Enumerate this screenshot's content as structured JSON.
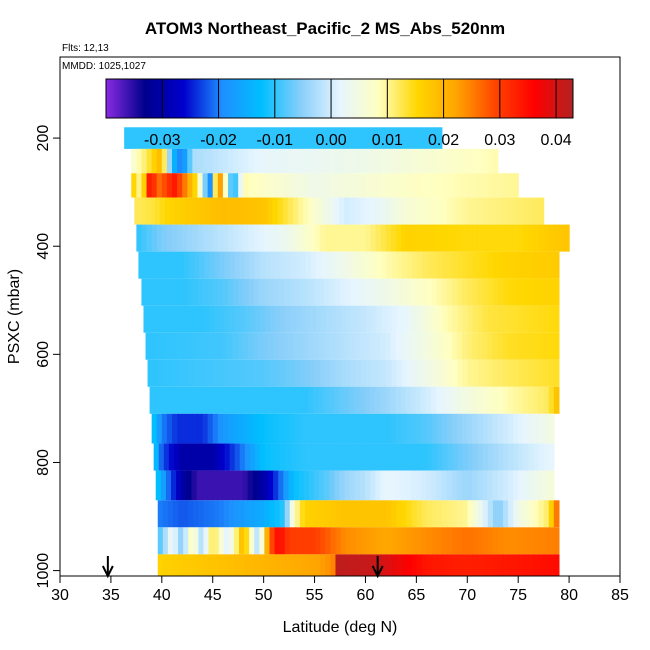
{
  "chart_data": {
    "type": "heatmap",
    "title": "ATOM3 Northeast_Pacific_2 MS_Abs_520nm",
    "notes": [
      "Flts: 12,13",
      "MMDD: 1025,1027"
    ],
    "xlabel": "Latitude (deg N)",
    "ylabel": "PSXC (mbar)",
    "xlim": [
      30,
      85
    ],
    "ylim": [
      1010,
      50
    ],
    "x_ticks": [
      30,
      35,
      40,
      45,
      50,
      55,
      60,
      65,
      70,
      75,
      80,
      85
    ],
    "y_ticks": [
      200,
      400,
      600,
      800,
      1000
    ],
    "colorbar": {
      "range": [
        -0.04,
        0.043
      ],
      "ticks": [
        -0.03,
        -0.02,
        -0.01,
        0.0,
        0.01,
        0.02,
        0.03,
        0.04
      ],
      "tick_labels": [
        "-0.03",
        "-0.02",
        "-0.01",
        "0.00",
        "0.01",
        "0.02",
        "0.03",
        "0.04"
      ],
      "colors": [
        "#8a2be2",
        "#00008b",
        "#0000cd",
        "#1e90ff",
        "#00bfff",
        "#87cefa",
        "#e6f5ff",
        "#ffffc0",
        "#ffd700",
        "#ffa500",
        "#ff4500",
        "#ff0000",
        "#b22222"
      ]
    },
    "markers": [
      {
        "latitude": 34.7,
        "label": "arrow"
      },
      {
        "latitude": 61.2,
        "label": "arrow"
      }
    ],
    "rows": [
      {
        "p_top": 180,
        "p_bot": 220,
        "lat_start": 36.3,
        "lat_end": 67.5,
        "stops": [
          [
            36.3,
            -0.01
          ],
          [
            67.5,
            -0.01
          ]
        ]
      },
      {
        "p_top": 220,
        "p_bot": 265,
        "lat_start": 37.0,
        "lat_end": 73.0,
        "stops": [
          [
            37.0,
            0.006
          ],
          [
            38.5,
            0.012
          ],
          [
            40.0,
            0.02
          ],
          [
            41.0,
            -0.012
          ],
          [
            42.0,
            -0.022
          ],
          [
            43.0,
            -0.003
          ],
          [
            50.0,
            0.002
          ],
          [
            60.0,
            0.004
          ],
          [
            73.0,
            0.009
          ]
        ]
      },
      {
        "p_top": 265,
        "p_bot": 310,
        "lat_start": 37.0,
        "lat_end": 75.0,
        "stops": [
          [
            37.0,
            0.018
          ],
          [
            38.0,
            0.008
          ],
          [
            38.8,
            0.035
          ],
          [
            39.8,
            0.026
          ],
          [
            41.2,
            0.034
          ],
          [
            42.2,
            0.026
          ],
          [
            43.5,
            0.013
          ],
          [
            44.8,
            -0.02
          ],
          [
            45.5,
            0.03
          ],
          [
            47.0,
            -0.015
          ],
          [
            48.0,
            0.009
          ],
          [
            55.0,
            0.004
          ],
          [
            65.0,
            0.008
          ],
          [
            75.0,
            0.01
          ]
        ]
      },
      {
        "p_top": 310,
        "p_bot": 360,
        "lat_start": 37.3,
        "lat_end": 77.5,
        "stops": [
          [
            37.3,
            0.012
          ],
          [
            39.0,
            0.013
          ],
          [
            41.0,
            0.016
          ],
          [
            46.0,
            0.019
          ],
          [
            50.0,
            0.018
          ],
          [
            55.0,
            0.007
          ],
          [
            58.0,
            0.0
          ],
          [
            61.0,
            0.002
          ],
          [
            64.0,
            0.006
          ],
          [
            70.0,
            0.01
          ],
          [
            77.5,
            0.012
          ]
        ]
      },
      {
        "p_top": 360,
        "p_bot": 410,
        "lat_start": 37.5,
        "lat_end": 80.0,
        "stops": [
          [
            37.5,
            -0.01
          ],
          [
            40.0,
            -0.006
          ],
          [
            44.0,
            -0.003
          ],
          [
            48.0,
            0.0
          ],
          [
            52.0,
            0.003
          ],
          [
            56.0,
            0.01
          ],
          [
            60.0,
            0.01
          ],
          [
            64.0,
            0.016
          ],
          [
            70.0,
            0.015
          ],
          [
            75.0,
            0.015
          ],
          [
            80.0,
            0.018
          ]
        ]
      },
      {
        "p_top": 410,
        "p_bot": 460,
        "lat_start": 37.7,
        "lat_end": 79.0,
        "stops": [
          [
            37.7,
            -0.01
          ],
          [
            42.0,
            -0.01
          ],
          [
            46.0,
            -0.006
          ],
          [
            50.0,
            -0.002
          ],
          [
            54.0,
            0.0
          ],
          [
            58.0,
            0.004
          ],
          [
            62.0,
            0.009
          ],
          [
            66.0,
            0.012
          ],
          [
            70.0,
            0.014
          ],
          [
            74.0,
            0.016
          ],
          [
            79.0,
            0.017
          ]
        ]
      },
      {
        "p_top": 460,
        "p_bot": 510,
        "lat_start": 38.0,
        "lat_end": 79.0,
        "stops": [
          [
            38.0,
            -0.01
          ],
          [
            42.0,
            -0.01
          ],
          [
            46.0,
            -0.008
          ],
          [
            50.0,
            -0.004
          ],
          [
            54.0,
            -0.002
          ],
          [
            58.0,
            0.001
          ],
          [
            62.0,
            0.004
          ],
          [
            66.0,
            0.008
          ],
          [
            70.0,
            0.012
          ],
          [
            74.0,
            0.015
          ],
          [
            79.0,
            0.016
          ]
        ]
      },
      {
        "p_top": 510,
        "p_bot": 560,
        "lat_start": 38.2,
        "lat_end": 79.0,
        "stops": [
          [
            38.2,
            -0.01
          ],
          [
            44.0,
            -0.01
          ],
          [
            48.0,
            -0.008
          ],
          [
            52.0,
            -0.005
          ],
          [
            56.0,
            -0.003
          ],
          [
            60.0,
            -0.001
          ],
          [
            64.0,
            0.002
          ],
          [
            68.0,
            0.009
          ],
          [
            72.0,
            0.013
          ],
          [
            79.0,
            0.015
          ]
        ]
      },
      {
        "p_top": 560,
        "p_bot": 610,
        "lat_start": 38.4,
        "lat_end": 79.0,
        "stops": [
          [
            38.4,
            -0.01
          ],
          [
            46.0,
            -0.009
          ],
          [
            50.0,
            -0.006
          ],
          [
            54.0,
            -0.004
          ],
          [
            58.0,
            -0.002
          ],
          [
            62.0,
            0.0
          ],
          [
            66.0,
            0.005
          ],
          [
            70.0,
            0.011
          ],
          [
            74.0,
            0.014
          ],
          [
            79.0,
            0.015
          ]
        ]
      },
      {
        "p_top": 610,
        "p_bot": 660,
        "lat_start": 38.6,
        "lat_end": 79.0,
        "stops": [
          [
            38.6,
            -0.01
          ],
          [
            50.0,
            -0.008
          ],
          [
            54.0,
            -0.006
          ],
          [
            58.0,
            -0.003
          ],
          [
            62.0,
            -0.001
          ],
          [
            66.0,
            0.004
          ],
          [
            70.0,
            0.01
          ],
          [
            74.0,
            0.012
          ],
          [
            79.0,
            0.014
          ]
        ]
      },
      {
        "p_top": 660,
        "p_bot": 710,
        "lat_start": 38.8,
        "lat_end": 79.0,
        "stops": [
          [
            38.8,
            -0.01
          ],
          [
            54.0,
            -0.01
          ],
          [
            58.0,
            -0.007
          ],
          [
            62.0,
            -0.004
          ],
          [
            66.0,
            0.0
          ],
          [
            70.0,
            0.005
          ],
          [
            74.0,
            0.009
          ],
          [
            78.0,
            0.012
          ],
          [
            79.0,
            0.02
          ]
        ]
      },
      {
        "p_top": 710,
        "p_bot": 765,
        "lat_start": 39.0,
        "lat_end": 78.5,
        "stops": [
          [
            39.0,
            -0.01
          ],
          [
            40.0,
            -0.02
          ],
          [
            41.5,
            -0.024
          ],
          [
            44.0,
            -0.024
          ],
          [
            46.0,
            -0.018
          ],
          [
            50.0,
            -0.012
          ],
          [
            54.0,
            -0.01
          ],
          [
            58.0,
            -0.01
          ],
          [
            62.0,
            -0.01
          ],
          [
            66.0,
            -0.008
          ],
          [
            70.0,
            -0.004
          ],
          [
            74.0,
            0.0
          ],
          [
            78.5,
            0.005
          ]
        ]
      },
      {
        "p_top": 765,
        "p_bot": 815,
        "lat_start": 39.2,
        "lat_end": 78.5,
        "stops": [
          [
            39.2,
            -0.01
          ],
          [
            40.0,
            -0.022
          ],
          [
            42.0,
            -0.03
          ],
          [
            45.0,
            -0.03
          ],
          [
            48.0,
            -0.02
          ],
          [
            50.0,
            -0.012
          ],
          [
            54.0,
            -0.01
          ],
          [
            58.0,
            -0.01
          ],
          [
            62.0,
            -0.01
          ],
          [
            66.0,
            -0.01
          ],
          [
            70.0,
            -0.006
          ],
          [
            74.0,
            -0.002
          ],
          [
            78.5,
            0.002
          ]
        ]
      },
      {
        "p_top": 815,
        "p_bot": 870,
        "lat_start": 39.4,
        "lat_end": 78.5,
        "stops": [
          [
            39.4,
            -0.01
          ],
          [
            40.5,
            -0.02
          ],
          [
            42.0,
            -0.03
          ],
          [
            43.5,
            -0.036
          ],
          [
            48.0,
            -0.036
          ],
          [
            50.0,
            -0.03
          ],
          [
            51.5,
            -0.022
          ],
          [
            53.0,
            -0.012
          ],
          [
            56.0,
            -0.008
          ],
          [
            58.0,
            -0.004
          ],
          [
            60.0,
            -0.002
          ],
          [
            62.0,
            0.002
          ],
          [
            66.0,
            0.0
          ],
          [
            70.0,
            -0.004
          ],
          [
            74.0,
            0.0
          ],
          [
            78.5,
            0.006
          ]
        ]
      },
      {
        "p_top": 870,
        "p_bot": 920,
        "lat_start": 39.6,
        "lat_end": 79.0,
        "stops": [
          [
            39.6,
            -0.02
          ],
          [
            42.0,
            -0.022
          ],
          [
            46.0,
            -0.02
          ],
          [
            50.0,
            -0.015
          ],
          [
            52.0,
            -0.01
          ],
          [
            53.0,
            0.008
          ],
          [
            54.0,
            0.016
          ],
          [
            58.0,
            0.018
          ],
          [
            62.0,
            0.018
          ],
          [
            66.0,
            0.012
          ],
          [
            70.0,
            0.01
          ],
          [
            73.0,
            -0.006
          ],
          [
            75.0,
            0.004
          ],
          [
            78.0,
            0.012
          ],
          [
            79.0,
            0.03
          ]
        ]
      },
      {
        "p_top": 920,
        "p_bot": 970,
        "lat_start": 39.6,
        "lat_end": 79.0,
        "stops": [
          [
            39.6,
            -0.01
          ],
          [
            41.0,
            0.004
          ],
          [
            42.0,
            -0.006
          ],
          [
            43.0,
            0.01
          ],
          [
            44.0,
            -0.004
          ],
          [
            45.0,
            0.014
          ],
          [
            46.5,
            0.0
          ],
          [
            48.0,
            0.02
          ],
          [
            49.5,
            -0.004
          ],
          [
            50.5,
            0.026
          ],
          [
            51.5,
            0.036
          ],
          [
            52.5,
            0.03
          ],
          [
            55.0,
            0.03
          ],
          [
            58.0,
            0.024
          ],
          [
            62.0,
            0.022
          ],
          [
            66.0,
            0.024
          ],
          [
            70.0,
            0.026
          ],
          [
            74.0,
            0.024
          ],
          [
            79.0,
            0.025
          ]
        ]
      },
      {
        "p_top": 970,
        "p_bot": 1010,
        "lat_start": 39.6,
        "lat_end": 79.0,
        "stops": [
          [
            39.6,
            0.016
          ],
          [
            45.0,
            0.018
          ],
          [
            50.0,
            0.02
          ],
          [
            55.0,
            0.022
          ],
          [
            56.8,
            0.024
          ],
          [
            57.0,
            0.042
          ],
          [
            61.0,
            0.041
          ],
          [
            63.0,
            0.038
          ],
          [
            66.0,
            0.034
          ],
          [
            70.0,
            0.033
          ],
          [
            75.0,
            0.034
          ],
          [
            79.0,
            0.035
          ]
        ]
      }
    ]
  }
}
